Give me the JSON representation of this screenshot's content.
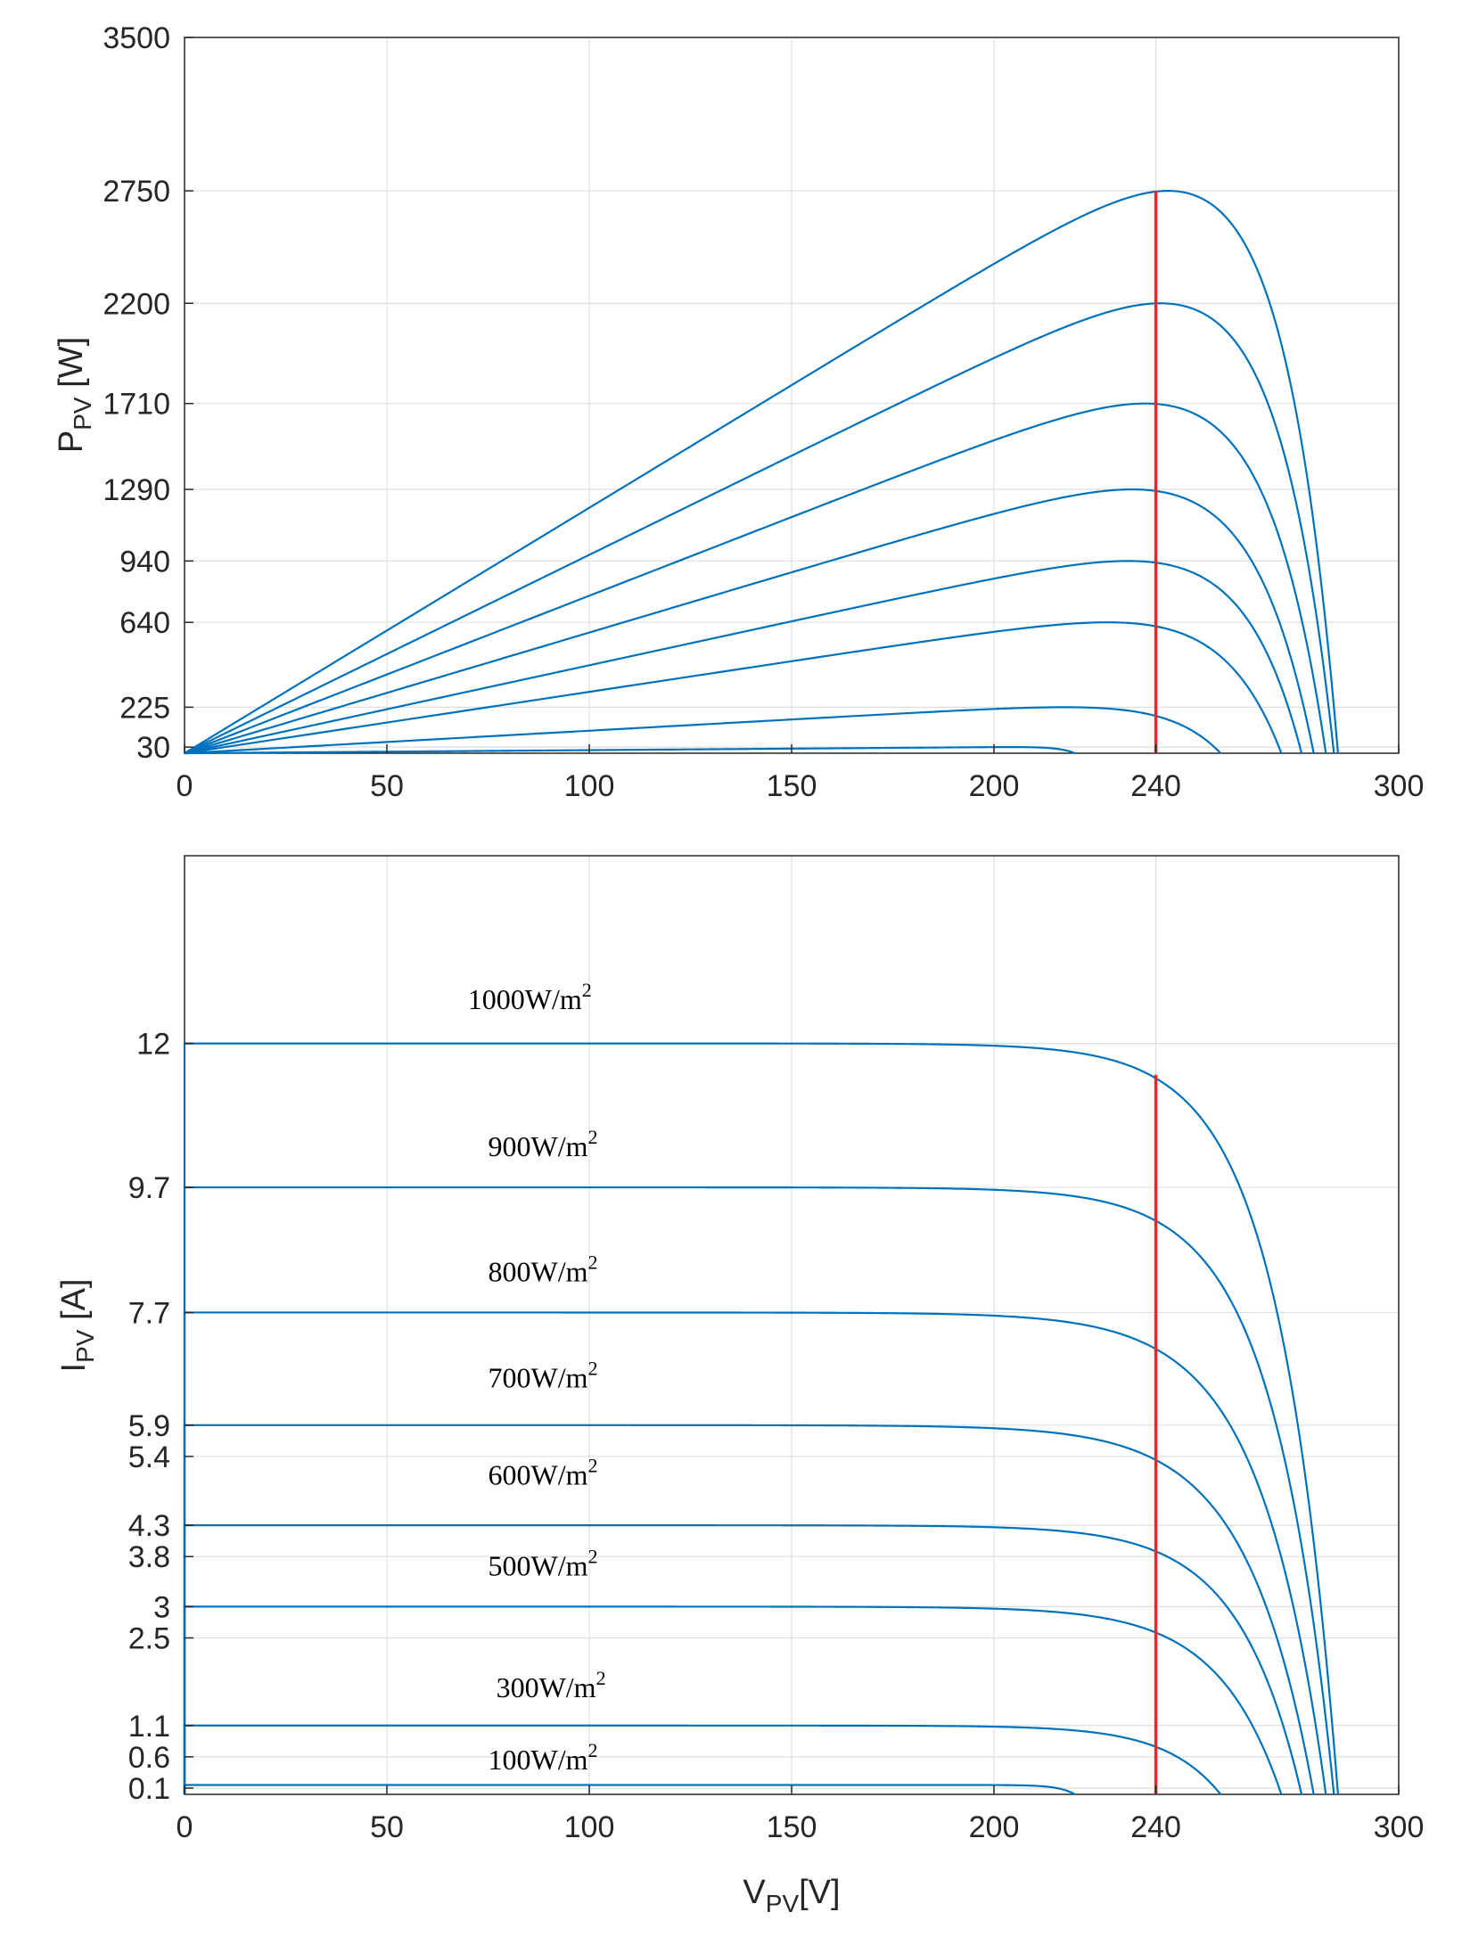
{
  "chart_data": [
    {
      "type": "line",
      "title": "",
      "ylabel_main": "P",
      "ylabel_sub": "PV",
      "ylabel_unit": " [W]",
      "xlabel_main": "",
      "xlabel_sub": "",
      "xlabel_unit": "",
      "xlim": [
        0,
        300
      ],
      "ylim": [
        0,
        3500
      ],
      "xticks": [
        0,
        50,
        100,
        150,
        200,
        240,
        300
      ],
      "yticks": [
        30,
        225,
        640,
        940,
        1290,
        1710,
        2200,
        2750,
        3500
      ],
      "grid": true,
      "mpp_line": {
        "x": 240,
        "y_top": 2750,
        "color": "#e8272a"
      },
      "series": [
        {
          "name": "1000W/m2",
          "isc": 12.0,
          "voc": 285,
          "pmax": 2750
        },
        {
          "name": "900W/m2",
          "isc": 9.7,
          "voc": 284,
          "pmax": 2200
        },
        {
          "name": "800W/m2",
          "isc": 7.7,
          "voc": 282,
          "pmax": 1710
        },
        {
          "name": "700W/m2",
          "isc": 5.9,
          "voc": 279,
          "pmax": 1290
        },
        {
          "name": "600W/m2",
          "isc": 4.3,
          "voc": 276,
          "pmax": 940
        },
        {
          "name": "500W/m2",
          "isc": 3.0,
          "voc": 271,
          "pmax": 640
        },
        {
          "name": "300W/m2",
          "isc": 1.1,
          "voc": 256,
          "pmax": 225
        },
        {
          "name": "100W/m2",
          "isc": 0.15,
          "voc": 220,
          "pmax": 30
        }
      ]
    },
    {
      "type": "line",
      "title": "",
      "ylabel_main": "I",
      "ylabel_sub": "PV",
      "ylabel_unit": " [A]",
      "xlabel_main": "V",
      "xlabel_sub": "PV",
      "xlabel_unit": "[V]",
      "xlim": [
        0,
        300
      ],
      "ylim": [
        0,
        15
      ],
      "xticks": [
        0,
        50,
        100,
        150,
        200,
        240,
        300
      ],
      "yticks": [
        0.1,
        0.6,
        1.1,
        2.5,
        3,
        3.8,
        4.3,
        5.4,
        5.9,
        7.7,
        9.7,
        12
      ],
      "grid": true,
      "mpp_line": {
        "x": 240,
        "y_top": 11.5,
        "color": "#e8272a"
      },
      "annotations": [
        {
          "text": "1000W/m",
          "sup": "2",
          "x": 70,
          "y": 12.55
        },
        {
          "text": "900W/m",
          "sup": "2",
          "x": 75,
          "y": 10.2
        },
        {
          "text": "800W/m",
          "sup": "2",
          "x": 75,
          "y": 8.2
        },
        {
          "text": "700W/m",
          "sup": "2",
          "x": 75,
          "y": 6.5
        },
        {
          "text": "600W/m",
          "sup": "2",
          "x": 75,
          "y": 4.95
        },
        {
          "text": "500W/m",
          "sup": "2",
          "x": 75,
          "y": 3.5
        },
        {
          "text": "300W/m",
          "sup": "2",
          "x": 77,
          "y": 1.55
        },
        {
          "text": "100W/m",
          "sup": "2",
          "x": 75,
          "y": 0.4
        }
      ]
    }
  ],
  "colors": {
    "curve": "#0072bd",
    "mpp": "#e8272a",
    "grid": "#dfdfdf",
    "axis": "#262626"
  }
}
